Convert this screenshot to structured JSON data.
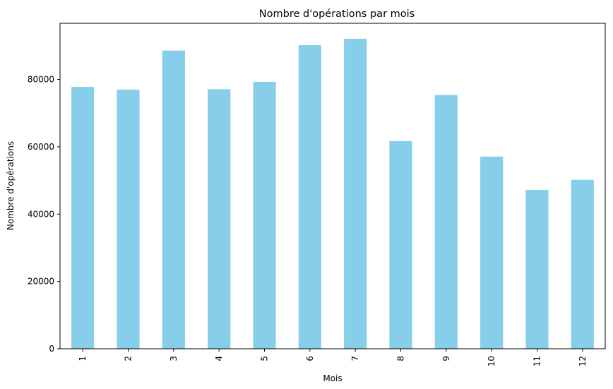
{
  "chart_data": {
    "type": "bar",
    "title": "Nombre d'opérations par mois",
    "xlabel": "Mois",
    "ylabel": "Nombre d'opérations",
    "categories": [
      "1",
      "2",
      "3",
      "4",
      "5",
      "6",
      "7",
      "8",
      "9",
      "10",
      "11",
      "12"
    ],
    "values": [
      77800,
      77000,
      88600,
      77100,
      79300,
      90200,
      92100,
      61700,
      75400,
      57100,
      47200,
      50200
    ],
    "yticks": [
      "0",
      "20000",
      "40000",
      "60000",
      "80000"
    ],
    "ylim": [
      0,
      96700
    ],
    "bar_color": "#87ceeb",
    "grid": false,
    "legend": "none"
  }
}
